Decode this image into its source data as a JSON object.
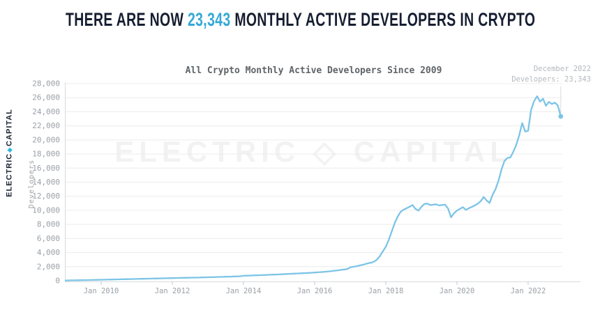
{
  "logo": {
    "left": "ELECTRIC",
    "separator": "◆",
    "right": "CAPITAL"
  },
  "headline": {
    "prefix": "THERE ARE NOW ",
    "count": "23,343",
    "suffix": " MONTHLY ACTIVE DEVELOPERS IN CRYPTO"
  },
  "watermark": {
    "text": "ELECTRIC ◇ CAPITAL"
  },
  "theme": {
    "headline_text": "#161e31",
    "headline_accent": "#33a9d6",
    "line_color": "#7cc4e6",
    "grid_color": "#ececec",
    "axis_color": "#d7dadd",
    "tick_color": "#c3c7cb",
    "tick_label_color": "#9aa0a6",
    "annotation_color": "#b4b9be",
    "leader_color": "#d9dcdf",
    "watermark_color": "#f2f2f2"
  },
  "chart_data": {
    "type": "line",
    "title": "All Crypto Monthly Active Developers Since 2009",
    "xlabel": "",
    "ylabel": "Developers",
    "ylim": [
      0,
      28000
    ],
    "grid": true,
    "x_start": "2009-01",
    "x_end": "2022-12",
    "x_tick_years": [
      2010,
      2012,
      2014,
      2016,
      2018,
      2020,
      2022
    ],
    "x_tick_labels": [
      "Jan 2010",
      "Jan 2012",
      "Jan 2014",
      "Jan 2016",
      "Jan 2018",
      "Jan 2020",
      "Jan 2022"
    ],
    "y_ticks": [
      0,
      2000,
      4000,
      6000,
      8000,
      10000,
      12000,
      14000,
      16000,
      18000,
      20000,
      22000,
      24000,
      26000,
      28000
    ],
    "y_tick_labels": [
      "0",
      "2,000",
      "4,000",
      "6,000",
      "8,000",
      "10,000",
      "12,000",
      "14,000",
      "16,000",
      "18,000",
      "20,000",
      "22,000",
      "24,000",
      "26,000",
      "28,000"
    ],
    "end_label": {
      "line1": "December 2022",
      "line2": "Developers: 23,343"
    },
    "end_value": 23343,
    "series": [
      {
        "name": "Monthly Active Developers",
        "monthly_values_jan2009_dec2022": [
          40,
          50,
          55,
          60,
          70,
          75,
          85,
          90,
          100,
          105,
          115,
          125,
          135,
          145,
          155,
          165,
          175,
          185,
          195,
          205,
          215,
          225,
          235,
          245,
          255,
          265,
          280,
          290,
          300,
          310,
          320,
          330,
          340,
          350,
          360,
          370,
          380,
          390,
          400,
          410,
          420,
          425,
          435,
          445,
          450,
          460,
          470,
          480,
          490,
          505,
          515,
          530,
          545,
          555,
          570,
          585,
          595,
          610,
          625,
          640,
          700,
          720,
          735,
          750,
          770,
          785,
          800,
          815,
          835,
          850,
          870,
          885,
          905,
          925,
          945,
          965,
          985,
          1005,
          1025,
          1045,
          1065,
          1085,
          1110,
          1140,
          1170,
          1200,
          1230,
          1260,
          1300,
          1340,
          1385,
          1430,
          1480,
          1540,
          1600,
          1660,
          1900,
          1980,
          2060,
          2150,
          2250,
          2350,
          2480,
          2560,
          2700,
          3000,
          3500,
          4200,
          4830,
          5800,
          7000,
          8200,
          9100,
          9800,
          10100,
          10300,
          10500,
          10750,
          10200,
          9960,
          10500,
          10900,
          10950,
          10750,
          10800,
          10850,
          10700,
          10750,
          10800,
          10250,
          9000,
          9600,
          9960,
          10200,
          10450,
          10060,
          10300,
          10500,
          10700,
          10945,
          11300,
          11900,
          11400,
          11050,
          12200,
          13000,
          14200,
          15800,
          17000,
          17450,
          17500,
          18300,
          19300,
          20700,
          22400,
          21200,
          21300,
          24250,
          25500,
          26200,
          25450,
          25850,
          24850,
          25400,
          25100,
          25300,
          24900,
          23343
        ]
      }
    ]
  }
}
